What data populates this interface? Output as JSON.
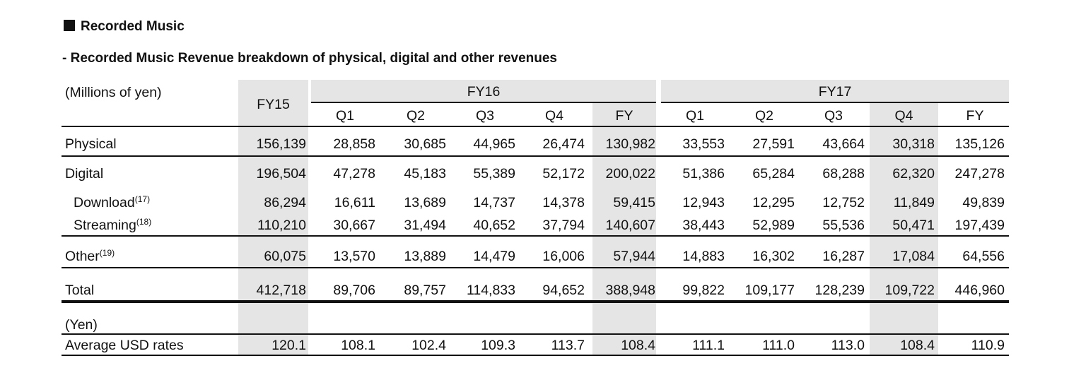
{
  "section_title": "Recorded Music",
  "subtitle": "- Recorded Music Revenue breakdown of physical, digital and other revenues",
  "table": {
    "unit_label": "(Millions of yen)",
    "fy15_label": "FY15",
    "fy16_label": "FY16",
    "fy17_label": "FY17",
    "quarters": [
      "Q1",
      "Q2",
      "Q3",
      "Q4",
      "FY"
    ],
    "rows": [
      {
        "label": "Physical",
        "sup": "",
        "values": [
          "156,139",
          "28,858",
          "30,685",
          "44,965",
          "26,474",
          "130,982",
          "33,553",
          "27,591",
          "43,664",
          "30,318",
          "135,126"
        ]
      },
      {
        "label": "Digital",
        "sup": "",
        "values": [
          "196,504",
          "47,278",
          "45,183",
          "55,389",
          "52,172",
          "200,022",
          "51,386",
          "65,284",
          "68,288",
          "62,320",
          "247,278"
        ]
      },
      {
        "label": "Download",
        "sup": "(17)",
        "values": [
          "86,294",
          "16,611",
          "13,689",
          "14,737",
          "14,378",
          "59,415",
          "12,943",
          "12,295",
          "12,752",
          "11,849",
          "49,839"
        ]
      },
      {
        "label": "Streaming",
        "sup": "(18)",
        "values": [
          "110,210",
          "30,667",
          "31,494",
          "40,652",
          "37,794",
          "140,607",
          "38,443",
          "52,989",
          "55,536",
          "50,471",
          "197,439"
        ]
      },
      {
        "label": "Other",
        "sup": "(19)",
        "values": [
          "60,075",
          "13,570",
          "13,889",
          "14,479",
          "16,006",
          "57,944",
          "14,883",
          "16,302",
          "16,287",
          "17,084",
          "64,556"
        ]
      },
      {
        "label": "Total",
        "sup": "",
        "values": [
          "412,718",
          "89,706",
          "89,757",
          "114,833",
          "94,652",
          "388,948",
          "99,822",
          "109,177",
          "128,239",
          "109,722",
          "446,960"
        ]
      }
    ],
    "yen_label": "(Yen)",
    "usd_row": {
      "label": "Average USD rates",
      "values": [
        "120.1",
        "108.1",
        "102.4",
        "109.3",
        "113.7",
        "108.4",
        "111.1",
        "111.0",
        "113.0",
        "108.4",
        "110.9"
      ]
    }
  }
}
